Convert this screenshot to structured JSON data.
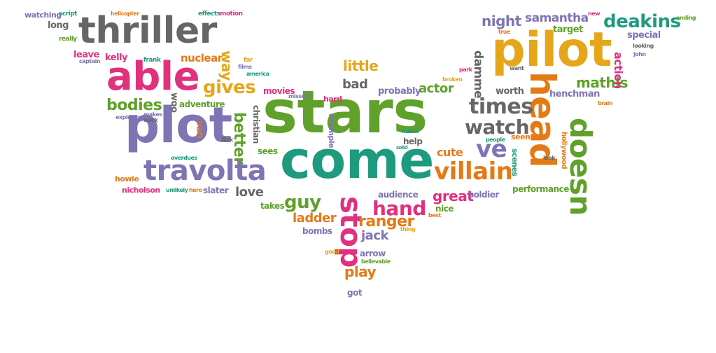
{
  "palette": {
    "green": "#5fa12a",
    "teal": "#1e9a7e",
    "purple": "#7f74b4",
    "magenta": "#e0307e",
    "orange": "#e47a16",
    "gold": "#e6a61a",
    "gray": "#666666"
  },
  "words": [
    {
      "text": "stars",
      "color": "green"
    },
    {
      "text": "come",
      "color": "teal"
    },
    {
      "text": "pilot",
      "color": "gold"
    },
    {
      "text": "plot",
      "color": "purple"
    },
    {
      "text": "thriller",
      "color": "gray"
    },
    {
      "text": "able",
      "color": "magenta"
    },
    {
      "text": "travolta",
      "color": "purple"
    },
    {
      "text": "head",
      "color": "orange"
    },
    {
      "text": "doesn",
      "color": "green"
    },
    {
      "text": "stop",
      "color": "magenta"
    },
    {
      "text": "villain",
      "color": "orange"
    },
    {
      "text": "deakins",
      "color": "teal"
    },
    {
      "text": "times",
      "color": "gray"
    },
    {
      "text": "watch",
      "color": "gray"
    },
    {
      "text": "ve",
      "color": "purple"
    },
    {
      "text": "hand",
      "color": "magenta"
    },
    {
      "text": "gives",
      "color": "gold"
    },
    {
      "text": "bodies",
      "color": "green"
    },
    {
      "text": "guy",
      "color": "green"
    },
    {
      "text": "ranger",
      "color": "orange"
    },
    {
      "text": "mathis",
      "color": "green"
    },
    {
      "text": "night",
      "color": "purple"
    },
    {
      "text": "samantha",
      "color": "purple"
    },
    {
      "text": "better",
      "color": "green"
    },
    {
      "text": "little",
      "color": "gold"
    },
    {
      "text": "bad",
      "color": "gray"
    },
    {
      "text": "actor",
      "color": "green"
    },
    {
      "text": "great",
      "color": "magenta"
    },
    {
      "text": "cute",
      "color": "orange"
    },
    {
      "text": "jack",
      "color": "purple"
    },
    {
      "text": "ladder",
      "color": "orange"
    },
    {
      "text": "play",
      "color": "orange"
    },
    {
      "text": "love",
      "color": "gray"
    },
    {
      "text": "way",
      "color": "gold"
    },
    {
      "text": "nuclear",
      "color": "orange"
    },
    {
      "text": "action",
      "color": "magenta"
    },
    {
      "text": "damme",
      "color": "gray"
    },
    {
      "text": "special",
      "color": "purple"
    },
    {
      "text": "target",
      "color": "green"
    },
    {
      "text": "henchman",
      "color": "purple"
    },
    {
      "text": "worth",
      "color": "gray"
    },
    {
      "text": "probably",
      "color": "purple"
    },
    {
      "text": "adventure",
      "color": "green"
    },
    {
      "text": "long",
      "color": "gray"
    },
    {
      "text": "leave",
      "color": "magenta"
    },
    {
      "text": "kelly",
      "color": "magenta"
    },
    {
      "text": "watching",
      "color": "purple"
    },
    {
      "text": "script",
      "color": "teal"
    },
    {
      "text": "helicopter",
      "color": "orange"
    },
    {
      "text": "effects",
      "color": "teal"
    },
    {
      "text": "motion",
      "color": "magenta"
    },
    {
      "text": "really",
      "color": "green"
    },
    {
      "text": "captain",
      "color": "purple"
    },
    {
      "text": "frank",
      "color": "teal"
    },
    {
      "text": "far",
      "color": "gold"
    },
    {
      "text": "films",
      "color": "purple"
    },
    {
      "text": "america",
      "color": "teal"
    },
    {
      "text": "movies",
      "color": "magenta"
    },
    {
      "text": "missed",
      "color": "purple"
    },
    {
      "text": "hard",
      "color": "magenta"
    },
    {
      "text": "woo",
      "color": "gray"
    },
    {
      "text": "christian",
      "color": "gray"
    },
    {
      "text": "makes",
      "color": "purple"
    },
    {
      "text": "explosions",
      "color": "purple"
    },
    {
      "text": "work",
      "color": "gray"
    },
    {
      "text": "van",
      "color": "orange"
    },
    {
      "text": "flick",
      "color": "gray"
    },
    {
      "text": "overdues",
      "color": "teal"
    },
    {
      "text": "sees",
      "color": "green"
    },
    {
      "text": "howie",
      "color": "orange"
    },
    {
      "text": "nicholson",
      "color": "magenta"
    },
    {
      "text": "unlikely",
      "color": "teal"
    },
    {
      "text": "hero",
      "color": "orange"
    },
    {
      "text": "slater",
      "color": "purple"
    },
    {
      "text": "takes",
      "color": "green"
    },
    {
      "text": "bombs",
      "color": "purple"
    },
    {
      "text": "example",
      "color": "purple"
    },
    {
      "text": "help",
      "color": "gray"
    },
    {
      "text": "solid",
      "color": "teal"
    },
    {
      "text": "nukes",
      "color": "teal"
    },
    {
      "text": "audience",
      "color": "purple"
    },
    {
      "text": "nice",
      "color": "green"
    },
    {
      "text": "best",
      "color": "orange"
    },
    {
      "text": "thing",
      "color": "gold"
    },
    {
      "text": "arrow",
      "color": "purple"
    },
    {
      "text": "believable",
      "color": "green"
    },
    {
      "text": "good",
      "color": "gold"
    },
    {
      "text": "got",
      "color": "purple"
    },
    {
      "text": "soldier",
      "color": "purple"
    },
    {
      "text": "performance",
      "color": "green"
    },
    {
      "text": "scenes",
      "color": "teal"
    },
    {
      "text": "hollywood",
      "color": "orange"
    },
    {
      "text": "look",
      "color": "gray"
    },
    {
      "text": "seen",
      "color": "orange"
    },
    {
      "text": "people",
      "color": "teal"
    },
    {
      "text": "new",
      "color": "magenta"
    },
    {
      "text": "true",
      "color": "orange"
    },
    {
      "text": "want",
      "color": "gray"
    },
    {
      "text": "park",
      "color": "magenta"
    },
    {
      "text": "broken",
      "color": "gold"
    },
    {
      "text": "brain",
      "color": "orange"
    },
    {
      "text": "looking",
      "color": "gray"
    },
    {
      "text": "john",
      "color": "purple"
    },
    {
      "text": "ending",
      "color": "green"
    }
  ]
}
